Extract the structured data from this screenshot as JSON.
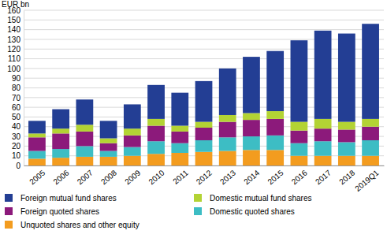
{
  "chart_data": {
    "type": "bar",
    "stacked": true,
    "grid": true,
    "y_label": "EUR bn",
    "categories": [
      "2005",
      "2006",
      "2007",
      "2008",
      "2009",
      "2010",
      "2011",
      "2012",
      "2013",
      "2014",
      "2015",
      "2016",
      "2017",
      "2018",
      "2019Q1"
    ],
    "ylim": [
      0,
      160
    ],
    "yticks": [
      0,
      10,
      20,
      30,
      40,
      50,
      60,
      70,
      80,
      90,
      100,
      110,
      120,
      130,
      140,
      150,
      160
    ],
    "series": [
      {
        "name": "Unquoted shares and other equity",
        "color": "#f39c1f",
        "values": [
          7,
          8,
          9,
          9,
          10,
          12,
          13,
          14,
          15,
          16,
          16,
          10,
          10,
          10,
          10
        ]
      },
      {
        "name": "Domestic quoted shares",
        "color": "#3dbdc4",
        "values": [
          8,
          9,
          11,
          6,
          9,
          13,
          10,
          12,
          14,
          14,
          15,
          13,
          15,
          14,
          16
        ]
      },
      {
        "name": "Foreign quoted shares",
        "color": "#8c1a7b",
        "values": [
          14,
          16,
          15,
          8,
          12,
          16,
          12,
          13,
          16,
          17,
          17,
          13,
          13,
          13,
          14
        ]
      },
      {
        "name": "Domestic mutual fund shares",
        "color": "#b3d334",
        "values": [
          4,
          5,
          7,
          5,
          7,
          7,
          6,
          6,
          7,
          7,
          8,
          9,
          10,
          8,
          8
        ]
      },
      {
        "name": "Foreign mutual fund shares",
        "color": "#233e94",
        "values": [
          13,
          20,
          26,
          18,
          25,
          35,
          34,
          42,
          48,
          58,
          62,
          84,
          91,
          91,
          98
        ]
      }
    ]
  }
}
